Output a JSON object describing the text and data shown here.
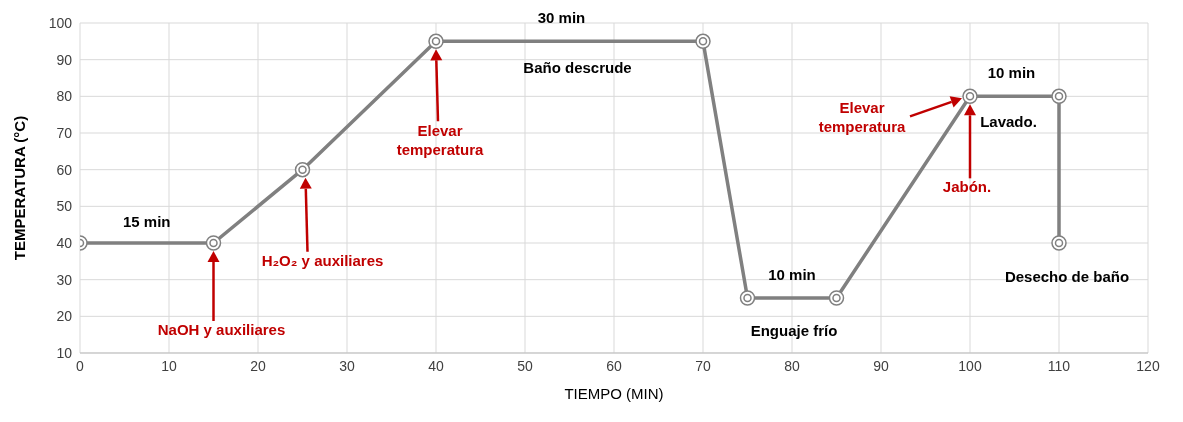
{
  "chart_data": {
    "type": "line",
    "xlabel": "TIEMPO (MIN)",
    "ylabel": "TEMPERATURA (°C)",
    "x": [
      0,
      15,
      25,
      40,
      70,
      75,
      85,
      100,
      110,
      110
    ],
    "series": [
      {
        "color": "#808080",
        "values": [
          40,
          40,
          60,
          95,
          95,
          25,
          25,
          80,
          80,
          40
        ]
      }
    ],
    "xlim": [
      0,
      120
    ],
    "xticks": [
      0,
      10,
      20,
      30,
      40,
      50,
      60,
      70,
      80,
      90,
      100,
      110,
      120
    ],
    "ylim": [
      10,
      100
    ],
    "yticks": [
      10,
      20,
      30,
      40,
      50,
      60,
      70,
      80,
      90,
      100
    ],
    "grid": true,
    "marker": "circle",
    "line_style": "solid",
    "annotations": [
      {
        "text": "15 min",
        "x": 7.5,
        "y": 40
      },
      "NaOH y auxiliares",
      "H₂O₂ y auxiliares",
      "Elevar temperatura",
      {
        "text": "30 min",
        "x": 55,
        "y": 95
      },
      {
        "text": "Baño descrude",
        "x": 55,
        "y": 95
      },
      {
        "text": "10 min",
        "x": 80,
        "y": 25
      },
      {
        "text": "Enguaje frío",
        "x": 80,
        "y": 25
      },
      "Elevar temperatura",
      "Jabón.",
      {
        "text": "10 min",
        "x": 105,
        "y": 80
      },
      {
        "text": "Lavado.",
        "x": 105,
        "y": 80
      },
      {
        "text": "Desecho de baño",
        "x": 110,
        "y": 40
      }
    ]
  }
}
